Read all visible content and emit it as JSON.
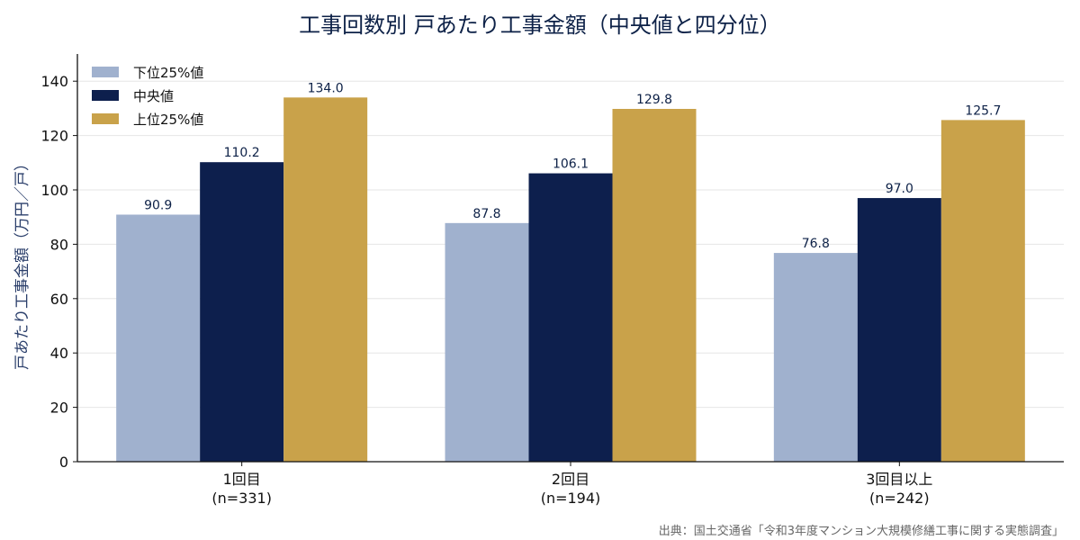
{
  "chart_data": {
    "type": "bar",
    "title": "工事回数別 戸あたり工事金額（中央値と四分位）",
    "ylabel": "戸あたり工事金額（万円／戸）",
    "xlabel": "",
    "categories": [
      [
        "1回目",
        "(n=331)"
      ],
      [
        "2回目",
        "(n=194)"
      ],
      [
        "3回目以上",
        "(n=242)"
      ]
    ],
    "series": [
      {
        "name": "下位25%値",
        "values": [
          90.9,
          87.8,
          76.8
        ],
        "labels": [
          "90.9",
          "87.8",
          "76.8"
        ],
        "color": "#a0b1ce"
      },
      {
        "name": "中央値",
        "values": [
          110.2,
          106.1,
          97.0
        ],
        "labels": [
          "110.2",
          "106.1",
          "97.0"
        ],
        "color": "#0d1f4d"
      },
      {
        "name": "上位25%値",
        "values": [
          134.0,
          129.8,
          125.7
        ],
        "labels": [
          "134.0",
          "129.8",
          "125.7"
        ],
        "color": "#c9a24a"
      }
    ],
    "ylim": [
      0,
      150
    ],
    "yticks": [
      0,
      20,
      40,
      60,
      80,
      100,
      120,
      140
    ],
    "ytick_labels": [
      "0",
      "20",
      "40",
      "60",
      "80",
      "100",
      "120",
      "140"
    ],
    "grid": true,
    "legend_position": "top-left",
    "source": "出典：国土交通省「令和3年度マンション大規模修繕工事に関する実態調査」"
  }
}
